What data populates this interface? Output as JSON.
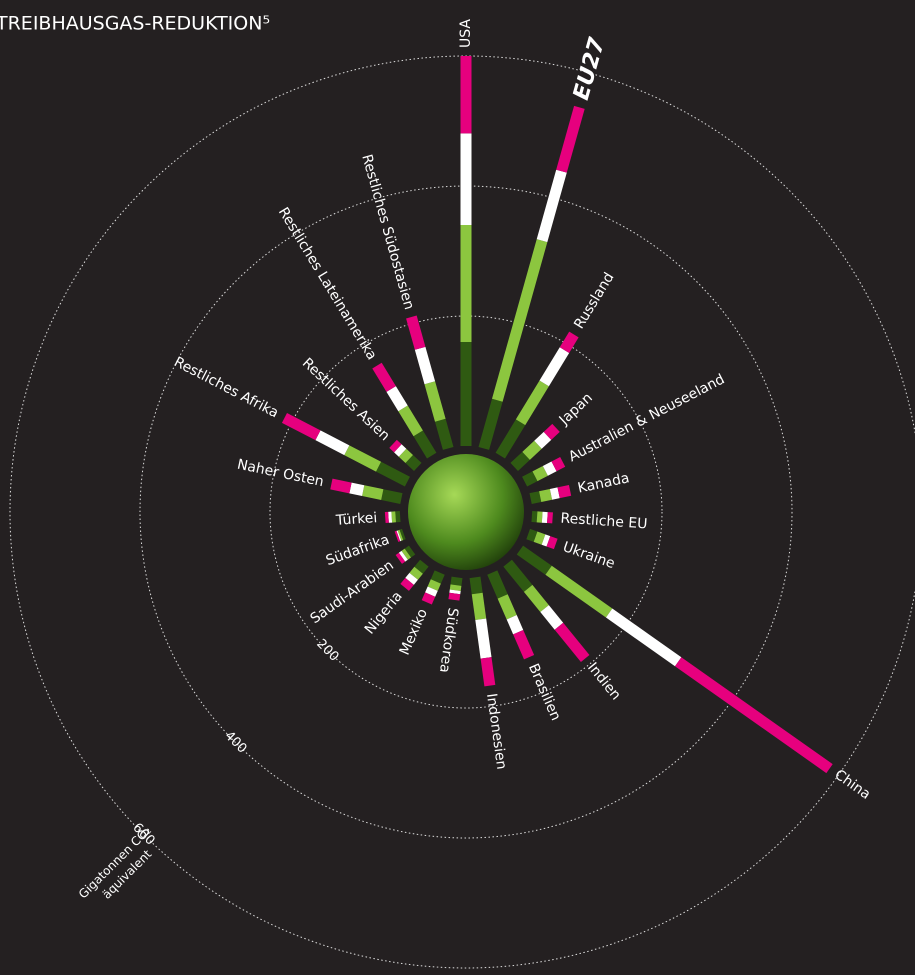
{
  "chart_data": {
    "type": "radial-stacked-bar",
    "title": "TREIBHAUSGAS-REDUKTION⁵",
    "y_label": [
      "Gigatonnen CO₂",
      "äquivalent"
    ],
    "categories": [
      "USA",
      "EU27",
      "Russland",
      "Japan",
      "Australien & Neuseeland",
      "Kanada",
      "Restliche EU",
      "Ukraine",
      "China",
      "Indien",
      "Brasilien",
      "Indonesien",
      "Südkorea",
      "Mexiko",
      "Nigeria",
      "Saudi-Arabien",
      "Südafrika",
      "Türkei",
      "Naher Osten",
      "Restliches Afrika",
      "Restliches Asien",
      "Restliches Lateinamerika",
      "Restliches Südostasien"
    ],
    "series": [
      {
        "color": "#2f5a12",
        "values": [
          160,
          77,
          60,
          25,
          18,
          15,
          8,
          12,
          54,
          50,
          40,
          25,
          12,
          15,
          14,
          8,
          4,
          7,
          30,
          50,
          18,
          40,
          45
        ]
      },
      {
        "color": "#8cc63f",
        "values": [
          180,
          255,
          70,
          25,
          18,
          17,
          8,
          13,
          114,
          40,
          35,
          40,
          8,
          12,
          12,
          6,
          3,
          6,
          30,
          55,
          14,
          45,
          60
        ]
      },
      {
        "color": "#ffffff",
        "values": [
          141,
          111,
          60,
          20,
          15,
          12,
          8,
          8,
          130,
          35,
          25,
          60,
          5,
          10,
          10,
          5,
          2,
          5,
          20,
          50,
          10,
          35,
          55
        ]
      },
      {
        "color": "#e6007e",
        "values": [
          119,
          102,
          28,
          18,
          15,
          18,
          8,
          12,
          285,
          64,
          42,
          43,
          10,
          13,
          12,
          6,
          3,
          5,
          30,
          58,
          10,
          42,
          50
        ]
      }
    ],
    "ylim": [
      0,
      600
    ],
    "yticks": [
      200,
      400,
      600
    ]
  }
}
